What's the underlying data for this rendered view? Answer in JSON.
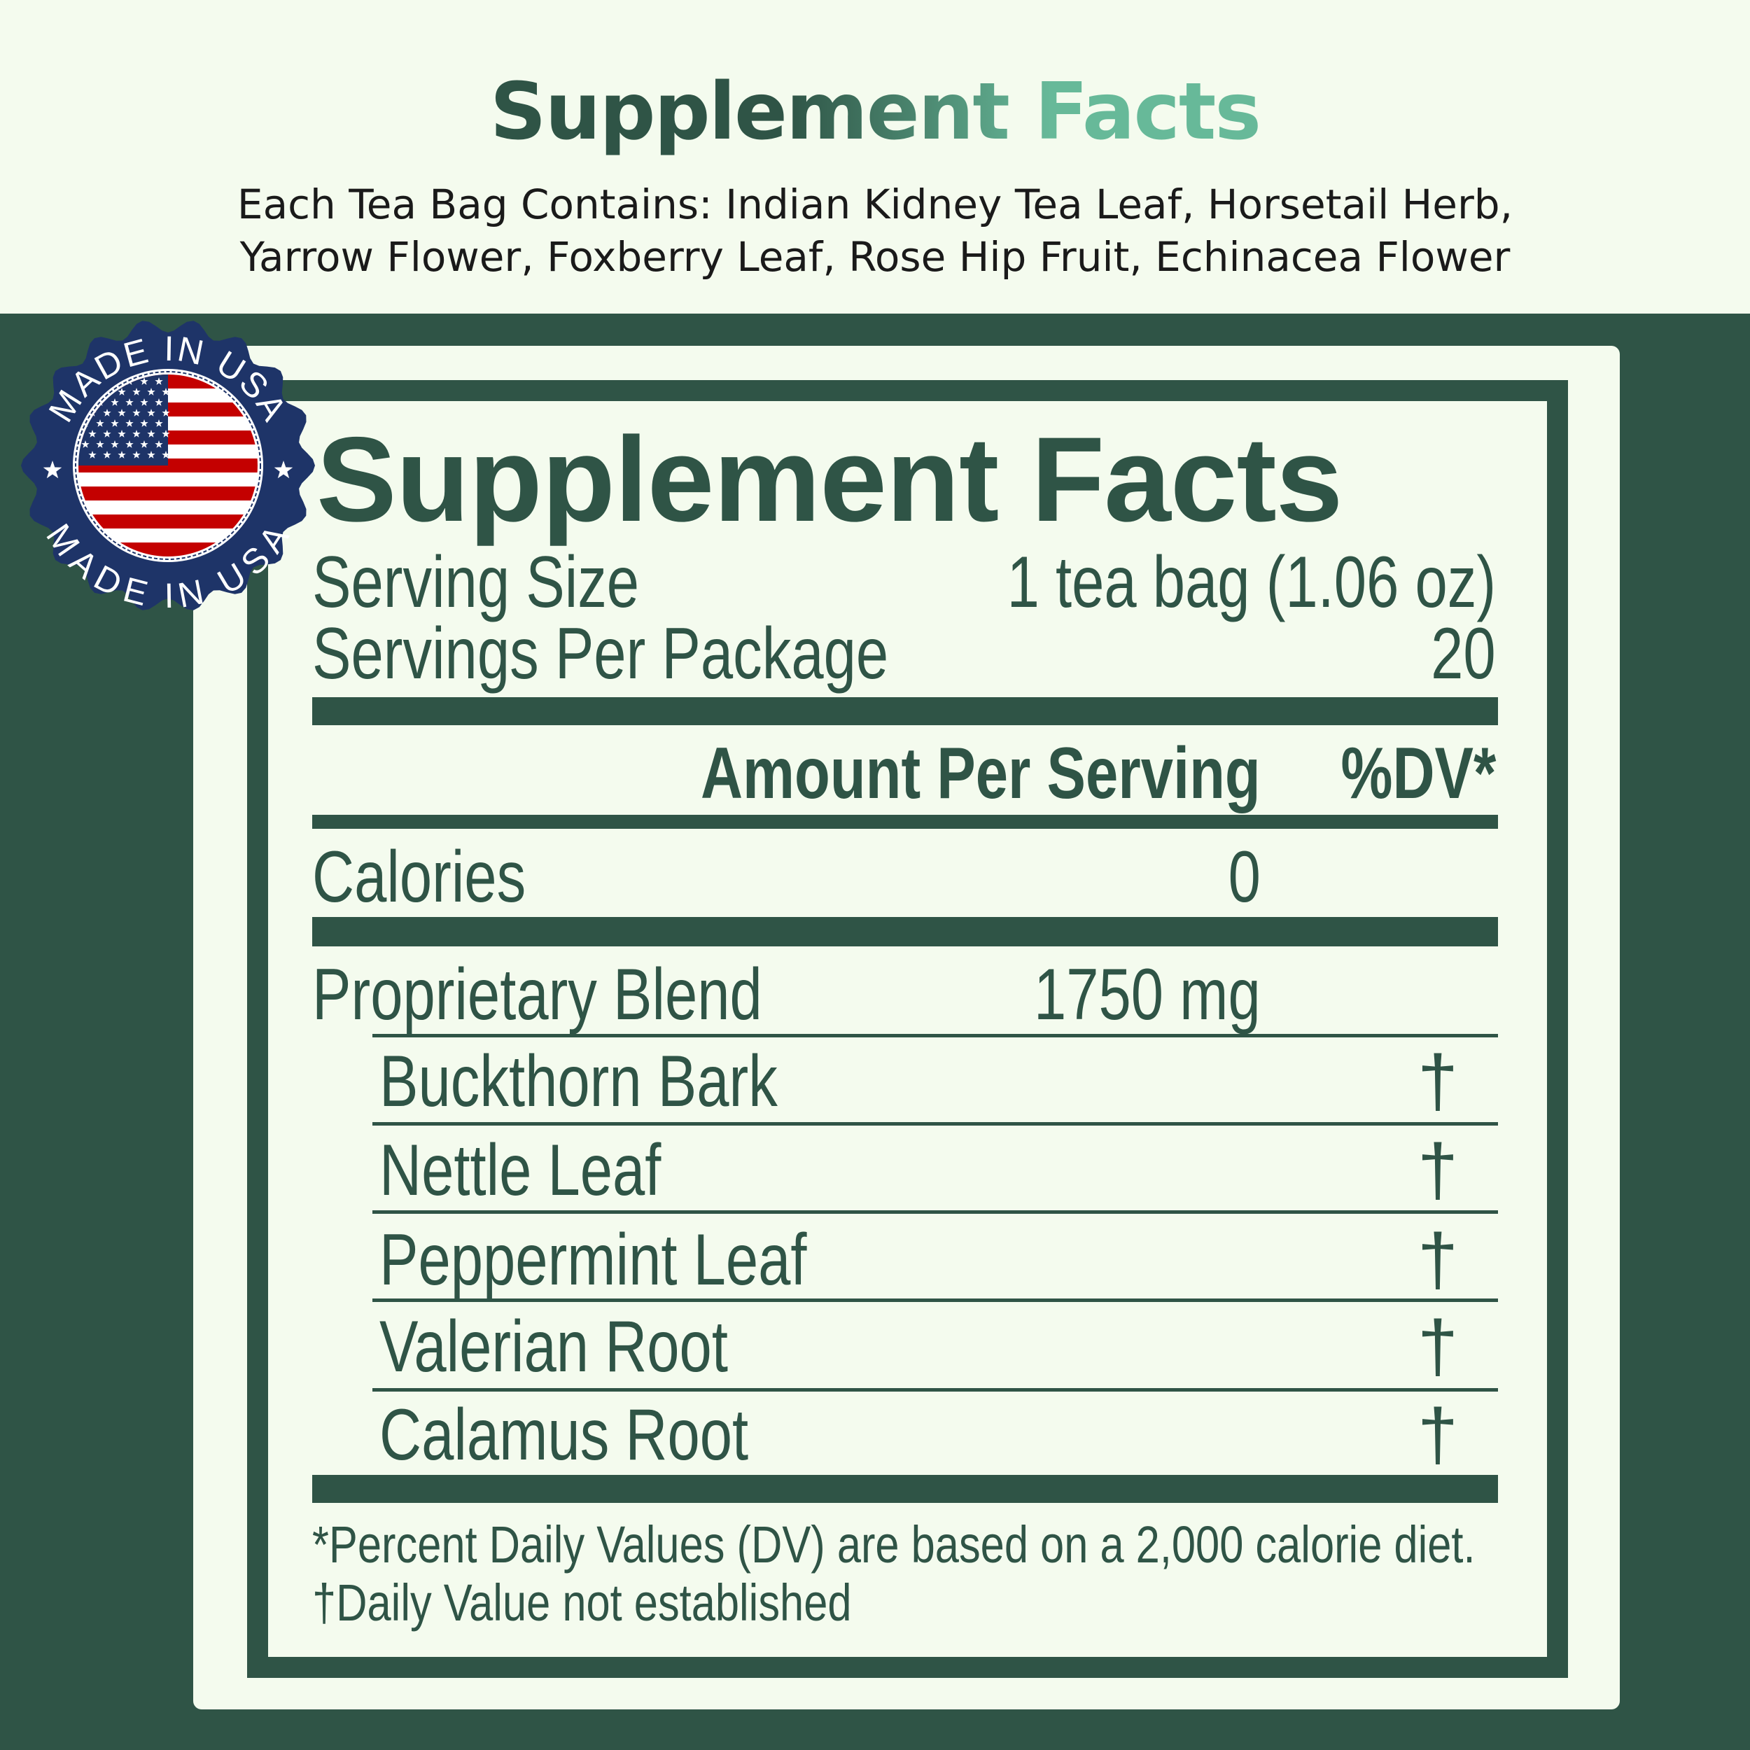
{
  "header": {
    "title": "Supplement Facts",
    "subtitle_line1": "Each Tea Bag Contains: Indian Kidney Tea Leaf, Horsetail Herb,",
    "subtitle_line2": "Yarrow Flower, Foxberry Leaf, Rose Hip Fruit, Echinacea Flower"
  },
  "badge": {
    "text_top": "MADE IN USA",
    "text_bottom": "MADE IN USA",
    "icon": "usa-flag-icon"
  },
  "label": {
    "title": "Supplement Facts",
    "serving_size_label": "Serving Size",
    "serving_size_value": "1 tea bag (1.06 oz)",
    "servings_label": "Servings Per Package",
    "servings_value": "20",
    "amount_header": "Amount Per Serving",
    "dv_header": "%DV*",
    "calories_label": "Calories",
    "calories_value": "0",
    "blend_label": "Proprietary Blend",
    "blend_value": "1750 mg",
    "ingredients": [
      {
        "name": "Buckthorn Bark",
        "dv": "†"
      },
      {
        "name": "Nettle Leaf",
        "dv": "†"
      },
      {
        "name": "Peppermint Leaf",
        "dv": "†"
      },
      {
        "name": "Valerian Root",
        "dv": "†"
      },
      {
        "name": "Calamus Root",
        "dv": "†"
      }
    ],
    "footnote1": "*Percent Daily Values (DV) are based on a 2,000 calorie diet.",
    "footnote2": "†Daily Value not established"
  },
  "colors": {
    "dark_green": "#2f5446",
    "light_green": "#67b999",
    "cream": "#f4fbee",
    "badge_navy": "#1e3468",
    "flag_red": "#c40000"
  }
}
